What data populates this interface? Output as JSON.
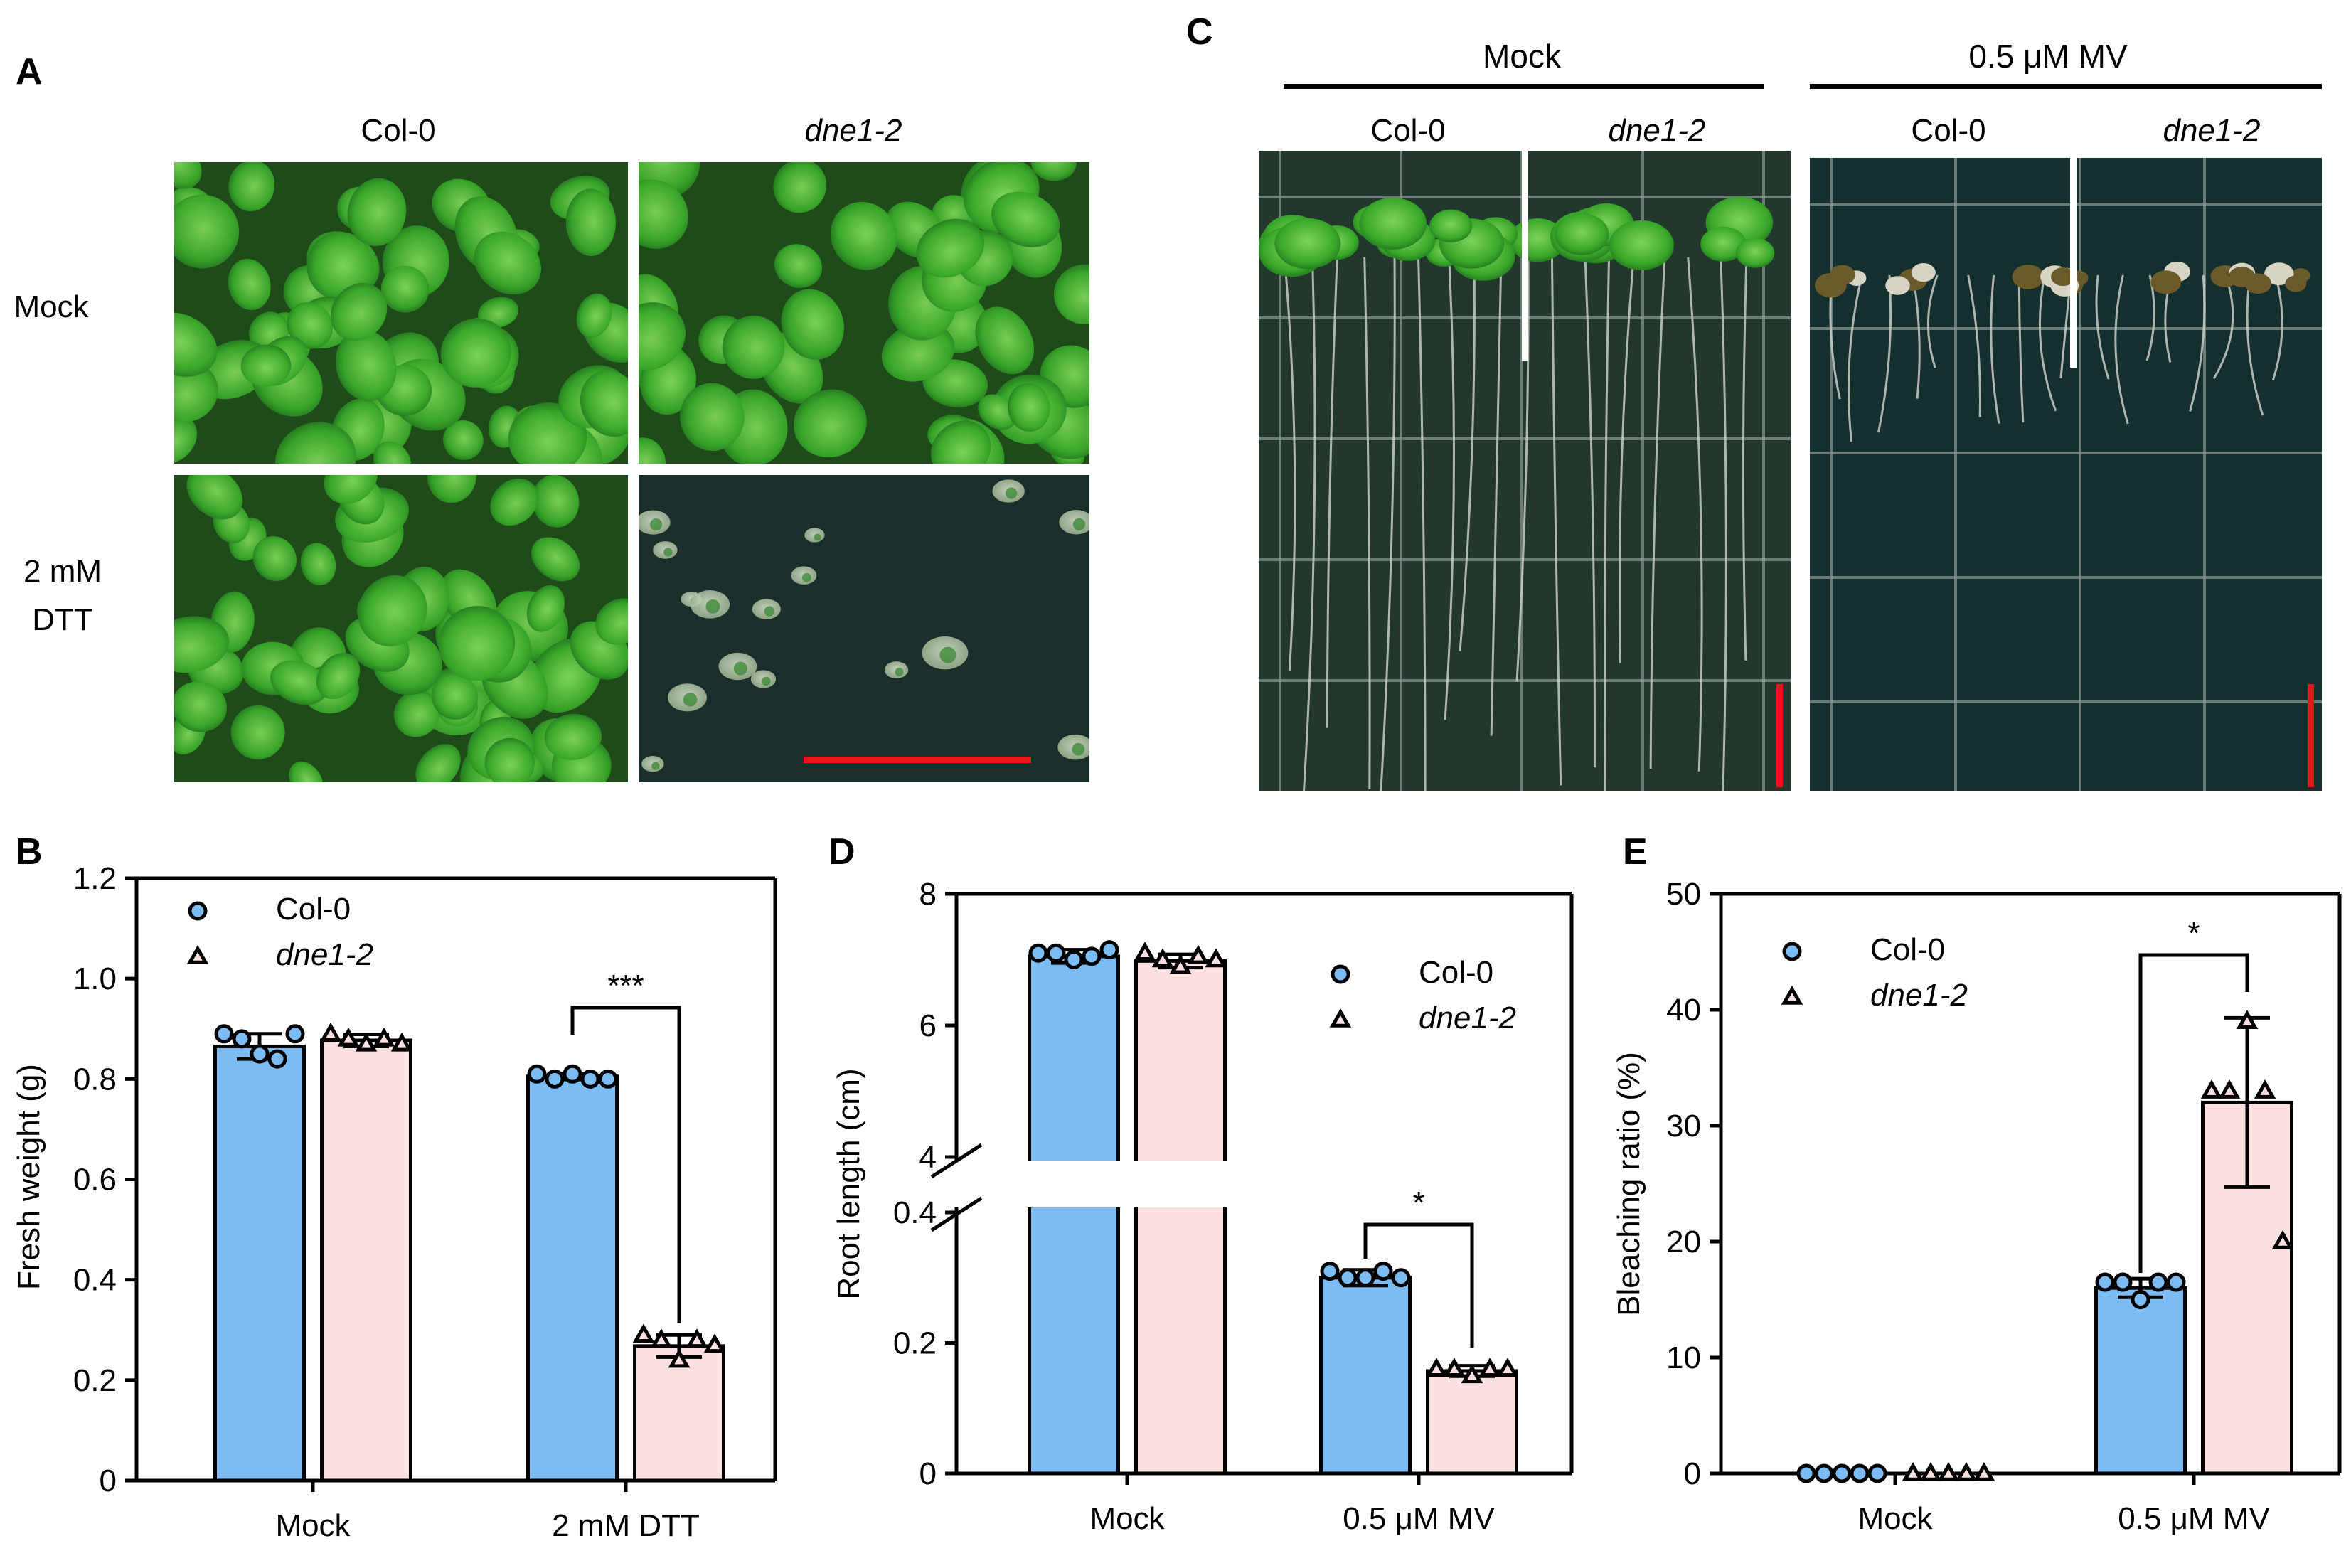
{
  "panels": {
    "A": {
      "letter": "A",
      "col_labels": [
        "Col-0",
        "dne1-2"
      ],
      "row_labels": [
        "Mock",
        "2 mM",
        "DTT"
      ]
    },
    "C": {
      "letter": "C",
      "group_labels": [
        "Mock",
        "0.5  μM MV"
      ],
      "col_labels": [
        "Col-0",
        "dne1-2",
        "Col-0",
        "dne1-2"
      ]
    }
  },
  "colors": {
    "col0_fill": "#7bbcf5",
    "dne_fill": "#fde0e0",
    "scale_bar": "#e8161b",
    "leaf_green": "#3aa82a",
    "plate_dark": "#15302c"
  },
  "chart_data": [
    {
      "panel": "B",
      "type": "bar",
      "categories": [
        "Mock",
        "2 mM DTT"
      ],
      "series": [
        {
          "name": "Col-0",
          "values": [
            0.865,
            0.805
          ],
          "sd": [
            0.025,
            0.006
          ],
          "points": [
            [
              0.89,
              0.88,
              0.85,
              0.84,
              0.89
            ],
            [
              0.81,
              0.8,
              0.81,
              0.8,
              0.8
            ]
          ]
        },
        {
          "name": "dne1-2",
          "values": [
            0.877,
            0.268
          ],
          "sd": [
            0.012,
            0.022
          ],
          "points": [
            [
              0.89,
              0.88,
              0.87,
              0.88,
              0.87
            ],
            [
              0.29,
              0.28,
              0.24,
              0.28,
              0.27
            ]
          ]
        }
      ],
      "ylabel": "Fresh weight (g)",
      "yticks": [
        "0",
        "0.2",
        "0.4",
        "0.6",
        "0.8",
        "1.0",
        "1.2"
      ],
      "ylim": [
        0,
        1.2
      ],
      "significance": [
        {
          "category": "2 mM DTT",
          "label": "***"
        }
      ],
      "legend": [
        "Col-0",
        "dne1-2"
      ]
    },
    {
      "panel": "D",
      "type": "bar",
      "categories": [
        "Mock",
        "0.5  μM MV"
      ],
      "axis_break": {
        "lower": [
          0,
          0.4
        ],
        "upper": [
          4,
          8
        ]
      },
      "series": [
        {
          "name": "Col-0",
          "values": [
            7.05,
            0.3
          ],
          "sd": [
            0.1,
            0.012
          ],
          "points": [
            [
              7.1,
              7.1,
              7.0,
              7.05,
              7.15
            ],
            [
              0.31,
              0.3,
              0.3,
              0.31,
              0.3
            ]
          ]
        },
        {
          "name": "dne1-2",
          "values": [
            6.98,
            0.157
          ],
          "sd": [
            0.1,
            0.008
          ],
          "points": [
            [
              7.1,
              7.0,
              6.9,
              7.05,
              7.0
            ],
            [
              0.16,
              0.16,
              0.15,
              0.16,
              0.16
            ]
          ]
        }
      ],
      "ylabel": "Root length (cm)",
      "yticks_lower": [
        "0",
        "0.2",
        "0.4"
      ],
      "yticks_upper": [
        "4",
        "6",
        "8"
      ],
      "significance": [
        {
          "category": "0.5  μM MV",
          "label": "*"
        }
      ],
      "legend": [
        "Col-0",
        "dne1-2"
      ]
    },
    {
      "panel": "E",
      "type": "bar",
      "categories": [
        "Mock",
        "0.5  μM MV"
      ],
      "series": [
        {
          "name": "Col-0",
          "values": [
            0,
            16
          ],
          "sd": [
            0,
            0.8
          ],
          "points": [
            [
              0,
              0,
              0,
              0,
              0
            ],
            [
              16.5,
              16.5,
              15,
              16.5,
              16.5
            ]
          ]
        },
        {
          "name": "dne1-2",
          "values": [
            0,
            32
          ],
          "sd": [
            0,
            7.3
          ],
          "points": [
            [
              0,
              0,
              0,
              0,
              0
            ],
            [
              33,
              33,
              39,
              33,
              20
            ]
          ]
        }
      ],
      "ylabel": "Bleaching ratio (%)",
      "yticks": [
        "0",
        "10",
        "20",
        "30",
        "40",
        "50"
      ],
      "ylim": [
        0,
        50
      ],
      "significance": [
        {
          "category": "0.5  μM MV",
          "label": "*"
        }
      ],
      "legend": [
        "Col-0",
        "dne1-2"
      ]
    }
  ]
}
